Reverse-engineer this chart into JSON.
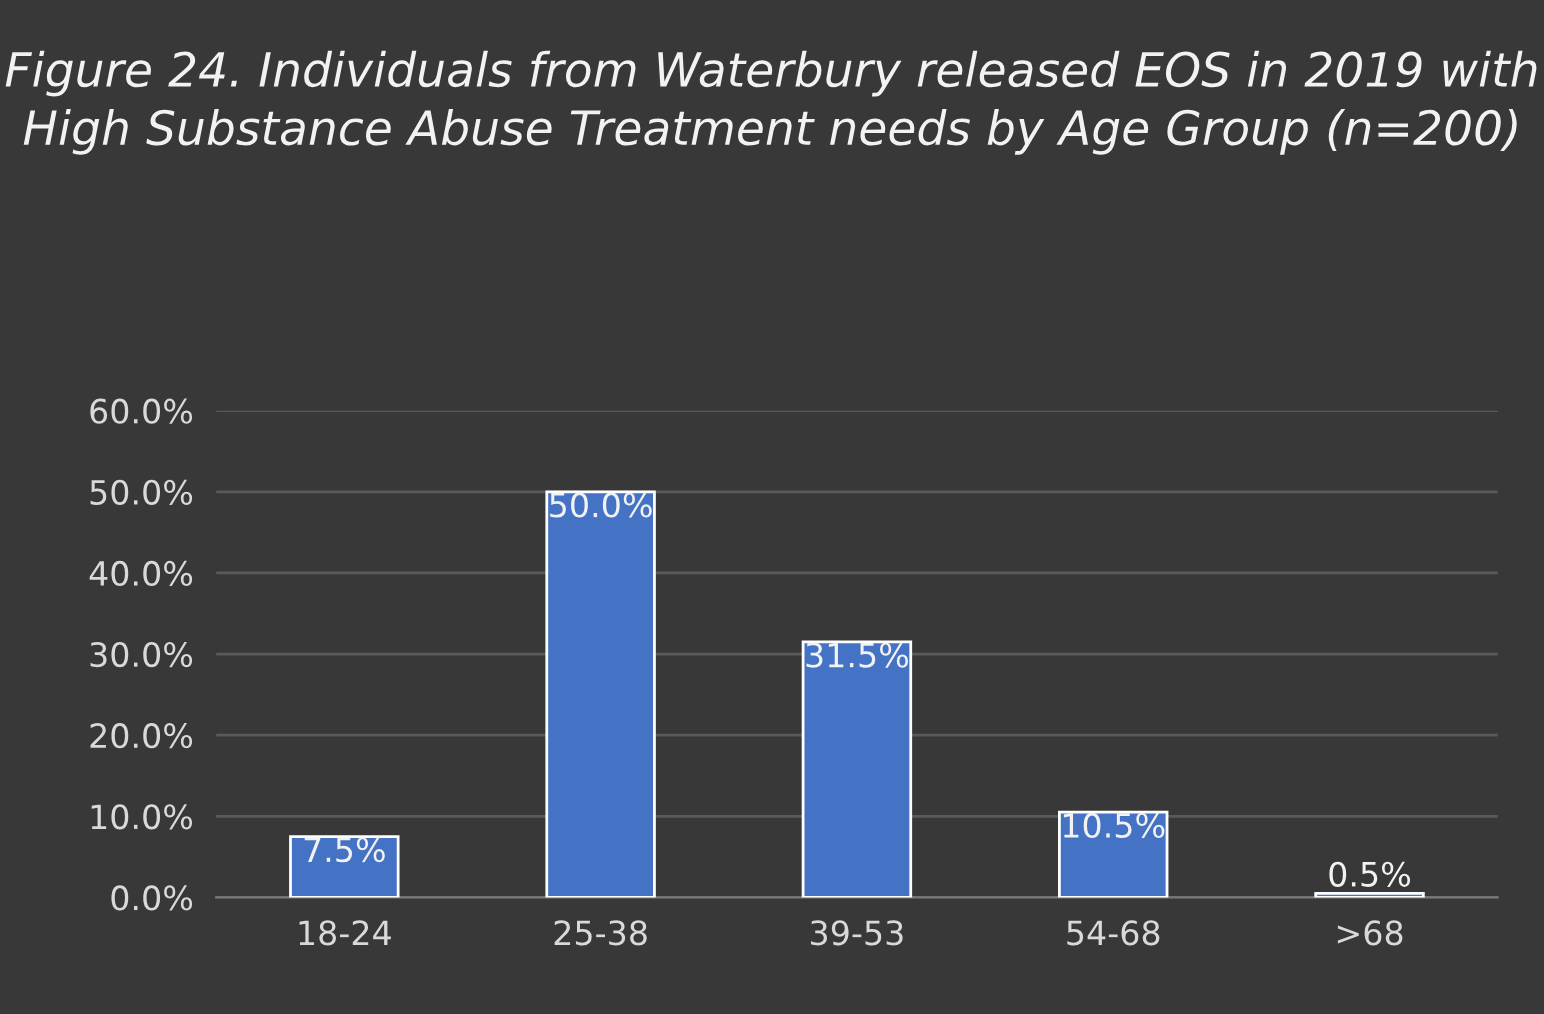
{
  "chart_data": {
    "type": "bar",
    "title": "Figure 24. Individuals from Waterbury released EOS in 2019 with High Substance Abuse Treatment needs by Age Group (n=200)",
    "categories": [
      "18-24",
      "25-38",
      "39-53",
      "54-68",
      ">68"
    ],
    "values": [
      7.5,
      50.0,
      31.5,
      10.5,
      0.5
    ],
    "value_labels": [
      "7.5%",
      "50.0%",
      "31.5%",
      "10.5%",
      "0.5%"
    ],
    "color": "#4472c4",
    "ylim": [
      0,
      60
    ],
    "yticks": [
      {
        "value": 0,
        "label": "0.0%"
      },
      {
        "value": 10,
        "label": "10.0%"
      },
      {
        "value": 20,
        "label": "20.0%"
      },
      {
        "value": 30,
        "label": "30.0%"
      },
      {
        "value": 40,
        "label": "40.0%"
      },
      {
        "value": 50,
        "label": "50.0%"
      },
      {
        "value": 60,
        "label": "60.0%"
      }
    ],
    "grid": "y",
    "legend": false
  }
}
